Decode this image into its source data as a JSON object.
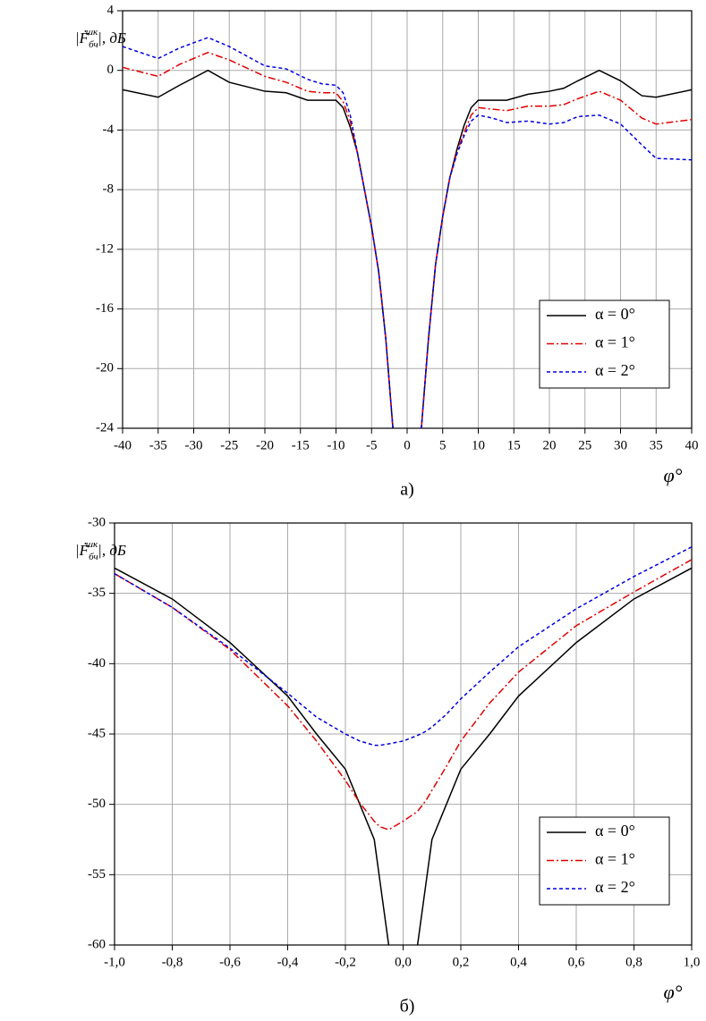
{
  "chart_data": [
    {
      "type": "line",
      "caption": "а)",
      "x_label": "φ°",
      "y_label": {
        "prefix": "|Ḟ",
        "sub": "бч",
        "sup": "шк",
        "suffix": "|, дБ"
      },
      "x": [
        -40,
        -35,
        -32,
        -28,
        -25,
        -20,
        -17,
        -14,
        -12,
        -10,
        -9,
        -8,
        -7,
        -6,
        -5,
        -4,
        -3,
        -2,
        0,
        2,
        3,
        4,
        5,
        6,
        7,
        8,
        9,
        10,
        12,
        14,
        17,
        20,
        22,
        24,
        27,
        30,
        33,
        35,
        40
      ],
      "series": [
        {
          "name": "α = 0°",
          "color": "#000000",
          "dash": "solid",
          "values": [
            -1.3,
            -1.8,
            -1.0,
            0,
            -0.8,
            -1.4,
            -1.5,
            -2.0,
            -2.0,
            -2.0,
            -2.5,
            -3.8,
            -5.5,
            -8,
            -10.5,
            -13.5,
            -18,
            -24,
            null,
            -24,
            -18,
            -13,
            -9.8,
            -7.2,
            -5.3,
            -3.7,
            -2.5,
            -2.0,
            -2.0,
            -2.0,
            -1.6,
            -1.4,
            -1.2,
            -0.7,
            0,
            -0.7,
            -1.7,
            -1.8,
            -1.3
          ]
        },
        {
          "name": "α = 1°",
          "color": "#e00000",
          "dash": "dashdot",
          "values": [
            0.2,
            -0.4,
            0.4,
            1.2,
            0.7,
            -0.4,
            -0.8,
            -1.4,
            -1.5,
            -1.5,
            -2.1,
            -3.4,
            -5.5,
            -8,
            -10.5,
            -13.5,
            -18,
            -24,
            null,
            -24,
            -18,
            -13,
            -9.8,
            -7.2,
            -5.5,
            -4.2,
            -3.0,
            -2.5,
            -2.6,
            -2.7,
            -2.4,
            -2.4,
            -2.3,
            -1.9,
            -1.4,
            -2.0,
            -3.2,
            -3.6,
            -3.3
          ]
        },
        {
          "name": "α = 2°",
          "color": "#0000e0",
          "dash": "dash",
          "values": [
            1.6,
            0.8,
            1.5,
            2.2,
            1.6,
            0.3,
            0.1,
            -0.6,
            -0.9,
            -1.0,
            -1.5,
            -3.0,
            -5.5,
            -8,
            -10.5,
            -13.5,
            -18,
            -24,
            null,
            -24,
            -18,
            -13,
            -9.8,
            -7.2,
            -5.6,
            -4.4,
            -3.4,
            -3.0,
            -3.2,
            -3.5,
            -3.4,
            -3.6,
            -3.5,
            -3.1,
            -3.0,
            -3.6,
            -5.0,
            -5.9,
            -6.0
          ]
        }
      ],
      "xlim": [
        -40,
        40
      ],
      "xticks": [
        -40,
        -35,
        -30,
        -25,
        -20,
        -15,
        -10,
        -5,
        0,
        5,
        10,
        15,
        20,
        25,
        30,
        35,
        40
      ],
      "ylim": [
        -24,
        4
      ],
      "yticks": [
        4,
        0,
        -4,
        -8,
        -12,
        -16,
        -20,
        -24
      ],
      "grid": true,
      "legend": "lower right"
    },
    {
      "type": "line",
      "caption": "б)",
      "x_label": "φ°",
      "y_label": {
        "prefix": "|Ḟ",
        "sub": "бч",
        "sup": "шк",
        "suffix": "|, дБ"
      },
      "x": [
        -1,
        -0.8,
        -0.6,
        -0.4,
        -0.3,
        -0.2,
        -0.15,
        -0.1,
        -0.08,
        -0.05,
        0,
        0.05,
        0.08,
        0.1,
        0.15,
        0.2,
        0.3,
        0.4,
        0.6,
        0.8,
        1
      ],
      "series": [
        {
          "name": "α = 0°",
          "color": "#000000",
          "dash": "solid",
          "values": [
            -33.2,
            -35.4,
            -38.5,
            -42.3,
            -45,
            -47.5,
            -50,
            -52.5,
            -55.5,
            -60,
            null,
            -60,
            -55.5,
            -52.5,
            -50,
            -47.5,
            -45,
            -42.3,
            -38.5,
            -35.4,
            -33.2
          ]
        },
        {
          "name": "α = 1°",
          "color": "#e00000",
          "dash": "dashdot",
          "values": [
            -33.6,
            -36,
            -39,
            -43,
            -45.5,
            -48.3,
            -49.9,
            -51.2,
            -51.6,
            -51.8,
            -51.2,
            -50.5,
            -49.7,
            -49,
            -47.3,
            -45.5,
            -42.8,
            -40.6,
            -37.3,
            -34.9,
            -32.6
          ]
        },
        {
          "name": "α = 2°",
          "color": "#0000e0",
          "dash": "dash",
          "values": [
            -33.6,
            -36,
            -38.9,
            -42.1,
            -43.8,
            -45,
            -45.5,
            -45.8,
            -45.8,
            -45.7,
            -45.5,
            -45.1,
            -44.8,
            -44.5,
            -43.6,
            -42.5,
            -40.6,
            -38.8,
            -36.1,
            -33.8,
            -31.7
          ]
        }
      ],
      "xlim": [
        -1,
        1
      ],
      "xticks": [
        {
          "value": -1,
          "label": "-1,0"
        },
        {
          "value": -0.8,
          "label": "-0,8"
        },
        {
          "value": -0.6,
          "label": "-0,6"
        },
        {
          "value": -0.4,
          "label": "-0,4"
        },
        {
          "value": -0.2,
          "label": "-0,2"
        },
        {
          "value": 0,
          "label": "0,0"
        },
        {
          "value": 0.2,
          "label": "0,2"
        },
        {
          "value": 0.4,
          "label": "0,4"
        },
        {
          "value": 0.6,
          "label": "0,6"
        },
        {
          "value": 0.8,
          "label": "0,8"
        },
        {
          "value": 1,
          "label": "1,0"
        }
      ],
      "ylim": [
        -60,
        -30
      ],
      "yticks": [
        -30,
        -35,
        -40,
        -45,
        -50,
        -55,
        -60
      ],
      "grid": true,
      "legend": "lower right"
    }
  ]
}
